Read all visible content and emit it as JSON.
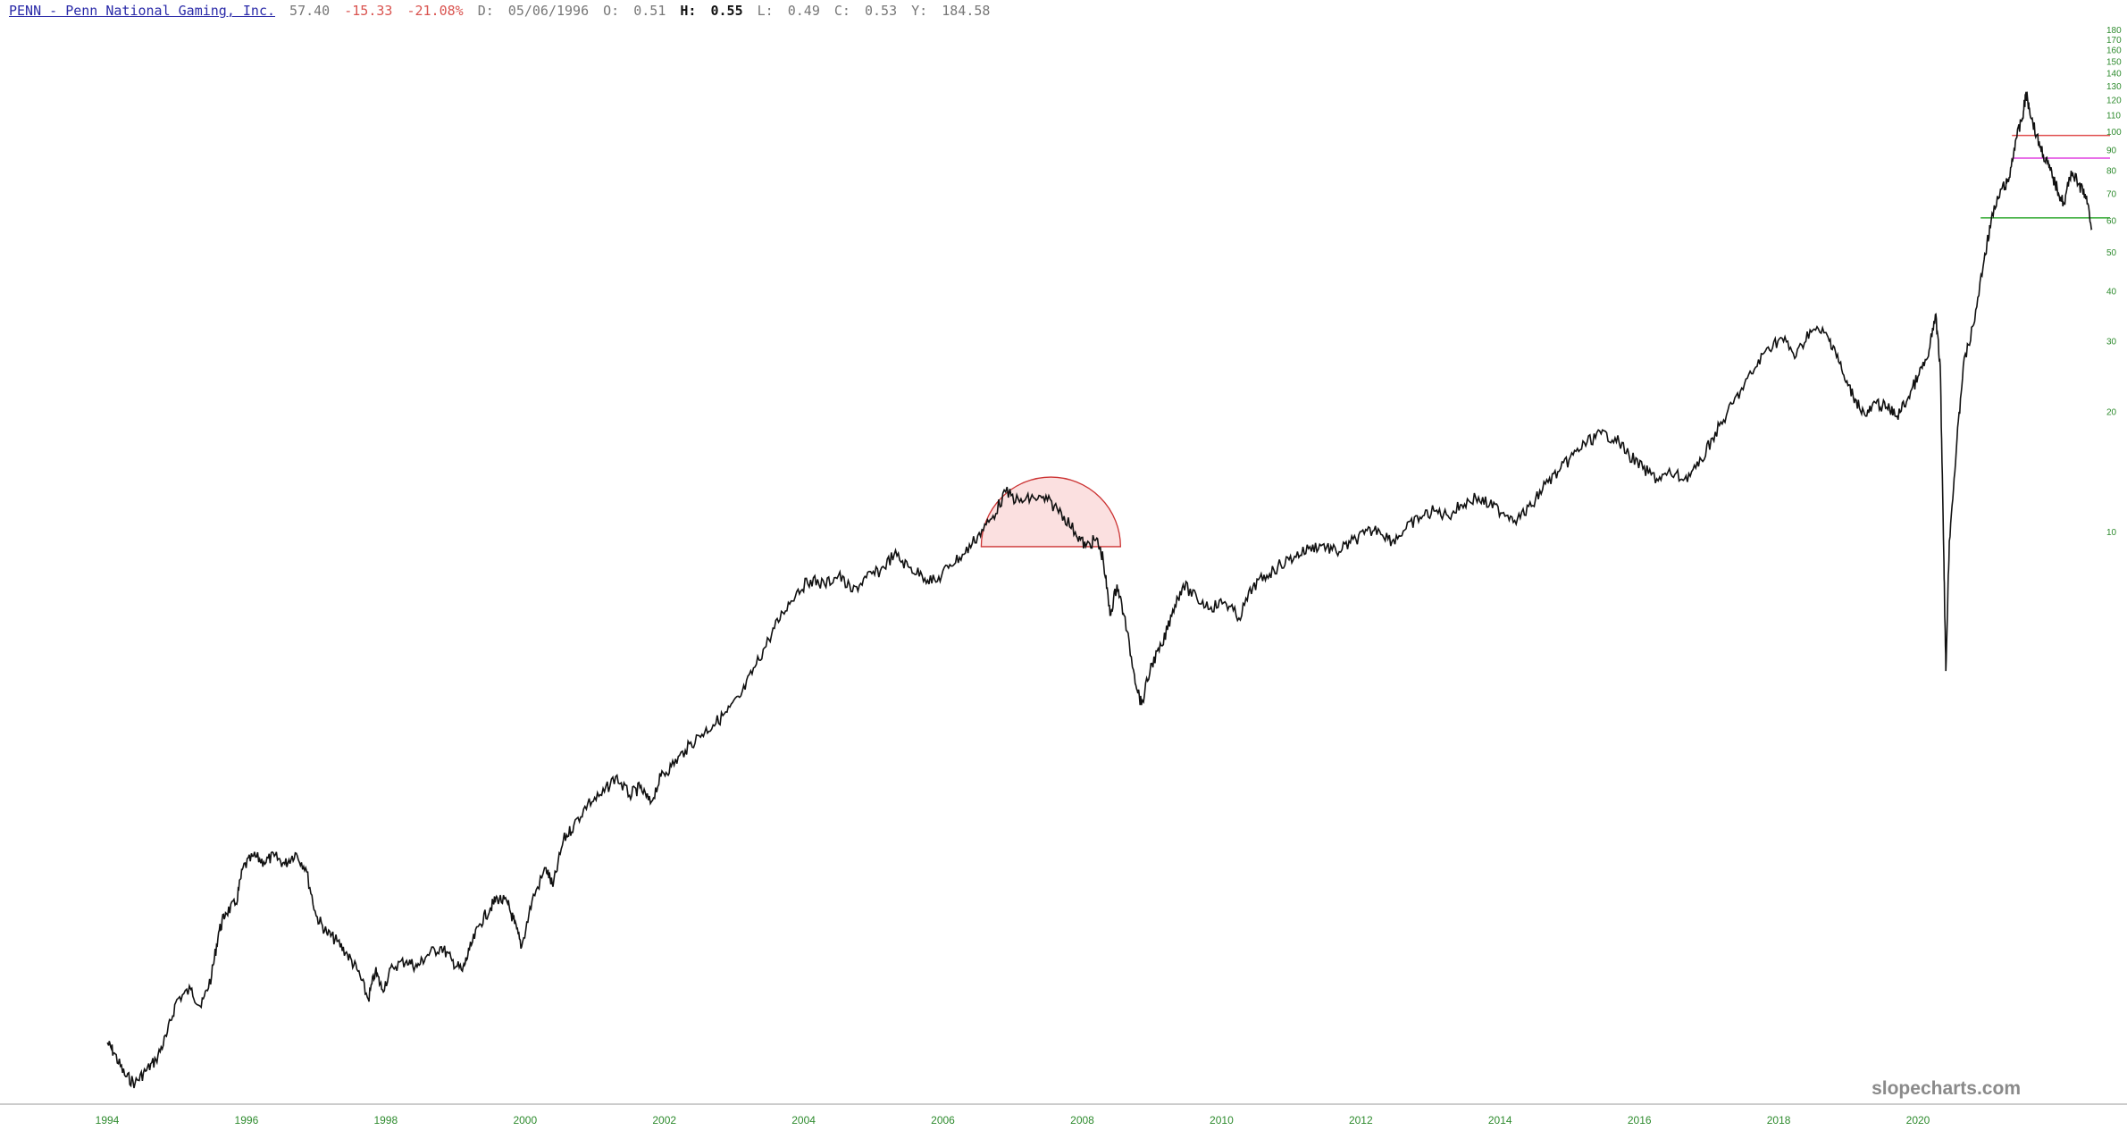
{
  "header": {
    "ticker_label": "PENN - Penn National Gaming, Inc.",
    "last": "57.40",
    "change": "-15.33",
    "change_pct": "-21.08%",
    "date_label": "D:",
    "date": "05/06/1996",
    "open_label": "O:",
    "open": "0.51",
    "high_label": "H:",
    "high": "0.55",
    "low_label": "L:",
    "low": "0.49",
    "close_label": "C:",
    "close": "0.53",
    "y_label": "Y:",
    "y": "184.58"
  },
  "watermark": "slopecharts.com",
  "colors": {
    "price_line": "#111111",
    "axis_text": "#2e8b2e",
    "semicircle_fill": "#f9d6d6",
    "semicircle_stroke": "#cc3333",
    "resistance_line": "#e05050",
    "magenta_line": "#e040e0",
    "support_line": "#33aa33"
  },
  "chart_data": {
    "type": "line",
    "title": "PENN - Penn National Gaming, Inc.",
    "y_scale": "log",
    "ylim": [
      0.4,
      185
    ],
    "xlim": [
      1994.0,
      2022.2
    ],
    "y_ticks": [
      {
        "value": 10,
        "label": "10"
      },
      {
        "value": 20,
        "label": "20"
      },
      {
        "value": 30,
        "label": "30"
      },
      {
        "value": 40,
        "label": "40"
      },
      {
        "value": 50,
        "label": "50"
      },
      {
        "value": 60,
        "label": "60"
      },
      {
        "value": 70,
        "label": "70"
      },
      {
        "value": 80,
        "label": "80"
      },
      {
        "value": 90,
        "label": "90"
      },
      {
        "value": 100,
        "label": "100"
      },
      {
        "value": 110,
        "label": "110"
      },
      {
        "value": 120,
        "label": "120"
      },
      {
        "value": 130,
        "label": "130"
      },
      {
        "value": 140,
        "label": "140"
      },
      {
        "value": 150,
        "label": "150"
      },
      {
        "value": 160,
        "label": "160"
      },
      {
        "value": 170,
        "label": "170"
      },
      {
        "value": 180,
        "label": "180"
      }
    ],
    "x_ticks": [
      {
        "value": 1994.5,
        "label": "1994"
      },
      {
        "value": 1996.5,
        "label": "1996"
      },
      {
        "value": 1998.5,
        "label": "1998"
      },
      {
        "value": 2000.5,
        "label": "2000"
      },
      {
        "value": 2002.5,
        "label": "2002"
      },
      {
        "value": 2004.5,
        "label": "2004"
      },
      {
        "value": 2006.5,
        "label": "2006"
      },
      {
        "value": 2008.5,
        "label": "2008"
      },
      {
        "value": 2010.5,
        "label": "2010"
      },
      {
        "value": 2012.5,
        "label": "2012"
      },
      {
        "value": 2014.5,
        "label": "2014"
      },
      {
        "value": 2016.5,
        "label": "2016"
      },
      {
        "value": 2018.5,
        "label": "2018"
      },
      {
        "value": 2020.5,
        "label": "2020"
      }
    ],
    "series": [
      {
        "values": [
          [
            1994.5,
            0.53
          ],
          [
            1994.6,
            0.5
          ],
          [
            1994.75,
            0.44
          ],
          [
            1994.9,
            0.42
          ],
          [
            1995.05,
            0.45
          ],
          [
            1995.2,
            0.48
          ],
          [
            1995.35,
            0.55
          ],
          [
            1995.5,
            0.68
          ],
          [
            1995.7,
            0.72
          ],
          [
            1995.85,
            0.65
          ],
          [
            1996.0,
            0.78
          ],
          [
            1996.1,
            1.0
          ],
          [
            1996.2,
            1.12
          ],
          [
            1996.35,
            1.18
          ],
          [
            1996.45,
            1.45
          ],
          [
            1996.6,
            1.55
          ],
          [
            1996.75,
            1.5
          ],
          [
            1996.9,
            1.55
          ],
          [
            1997.05,
            1.48
          ],
          [
            1997.2,
            1.58
          ],
          [
            1997.35,
            1.45
          ],
          [
            1997.5,
            1.1
          ],
          [
            1997.65,
            1.0
          ],
          [
            1997.8,
            0.95
          ],
          [
            1997.95,
            0.88
          ],
          [
            1998.1,
            0.8
          ],
          [
            1998.25,
            0.68
          ],
          [
            1998.35,
            0.8
          ],
          [
            1998.45,
            0.72
          ],
          [
            1998.6,
            0.82
          ],
          [
            1998.8,
            0.85
          ],
          [
            1998.95,
            0.82
          ],
          [
            1999.1,
            0.88
          ],
          [
            1999.3,
            0.92
          ],
          [
            1999.45,
            0.85
          ],
          [
            1999.6,
            0.8
          ],
          [
            1999.7,
            0.9
          ],
          [
            1999.85,
            1.05
          ],
          [
            2000.0,
            1.15
          ],
          [
            2000.1,
            1.22
          ],
          [
            2000.25,
            1.18
          ],
          [
            2000.35,
            1.05
          ],
          [
            2000.45,
            0.92
          ],
          [
            2000.6,
            1.2
          ],
          [
            2000.8,
            1.45
          ],
          [
            2000.9,
            1.3
          ],
          [
            2001.05,
            1.7
          ],
          [
            2001.2,
            1.85
          ],
          [
            2001.4,
            2.1
          ],
          [
            2001.6,
            2.2
          ],
          [
            2001.8,
            2.45
          ],
          [
            2002.0,
            2.2
          ],
          [
            2002.15,
            2.3
          ],
          [
            2002.3,
            2.1
          ],
          [
            2002.45,
            2.45
          ],
          [
            2002.6,
            2.6
          ],
          [
            2002.8,
            2.85
          ],
          [
            2003.0,
            3.1
          ],
          [
            2003.2,
            3.3
          ],
          [
            2003.4,
            3.55
          ],
          [
            2003.6,
            3.9
          ],
          [
            2003.8,
            4.6
          ],
          [
            2004.0,
            5.4
          ],
          [
            2004.2,
            6.3
          ],
          [
            2004.4,
            7.1
          ],
          [
            2004.6,
            7.6
          ],
          [
            2004.8,
            7.4
          ],
          [
            2005.0,
            7.8
          ],
          [
            2005.2,
            7.1
          ],
          [
            2005.4,
            7.7
          ],
          [
            2005.6,
            8.0
          ],
          [
            2005.8,
            8.8
          ],
          [
            2006.0,
            8.2
          ],
          [
            2006.2,
            7.8
          ],
          [
            2006.4,
            7.5
          ],
          [
            2006.6,
            8.3
          ],
          [
            2006.8,
            8.8
          ],
          [
            2007.0,
            9.8
          ],
          [
            2007.2,
            10.8
          ],
          [
            2007.4,
            12.6
          ],
          [
            2007.6,
            11.9
          ],
          [
            2007.8,
            12.2
          ],
          [
            2008.0,
            12.0
          ],
          [
            2008.2,
            11.2
          ],
          [
            2008.4,
            10.0
          ],
          [
            2008.55,
            9.2
          ],
          [
            2008.7,
            9.6
          ],
          [
            2008.8,
            8.6
          ],
          [
            2008.9,
            6.2
          ],
          [
            2009.0,
            7.4
          ],
          [
            2009.1,
            6.2
          ],
          [
            2009.25,
            4.4
          ],
          [
            2009.35,
            3.7
          ],
          [
            2009.5,
            4.7
          ],
          [
            2009.65,
            5.2
          ],
          [
            2009.8,
            6.4
          ],
          [
            2009.95,
            7.4
          ],
          [
            2010.15,
            6.8
          ],
          [
            2010.35,
            6.5
          ],
          [
            2010.55,
            6.7
          ],
          [
            2010.75,
            6.1
          ],
          [
            2010.95,
            7.3
          ],
          [
            2011.15,
            7.8
          ],
          [
            2011.35,
            8.3
          ],
          [
            2011.55,
            8.7
          ],
          [
            2011.75,
            9.1
          ],
          [
            2011.95,
            9.3
          ],
          [
            2012.15,
            8.9
          ],
          [
            2012.35,
            9.4
          ],
          [
            2012.55,
            9.9
          ],
          [
            2012.75,
            10.2
          ],
          [
            2012.95,
            9.5
          ],
          [
            2013.15,
            10.2
          ],
          [
            2013.35,
            10.9
          ],
          [
            2013.55,
            11.3
          ],
          [
            2013.75,
            11.0
          ],
          [
            2013.95,
            11.7
          ],
          [
            2014.15,
            12.2
          ],
          [
            2014.35,
            11.7
          ],
          [
            2014.55,
            11.2
          ],
          [
            2014.75,
            10.8
          ],
          [
            2014.95,
            11.6
          ],
          [
            2015.15,
            13.2
          ],
          [
            2015.35,
            14.2
          ],
          [
            2015.55,
            15.6
          ],
          [
            2015.75,
            16.8
          ],
          [
            2015.95,
            17.6
          ],
          [
            2016.15,
            17.2
          ],
          [
            2016.35,
            15.6
          ],
          [
            2016.55,
            14.4
          ],
          [
            2016.75,
            13.6
          ],
          [
            2016.95,
            14.0
          ],
          [
            2017.15,
            13.6
          ],
          [
            2017.35,
            14.6
          ],
          [
            2017.55,
            17.2
          ],
          [
            2017.75,
            19.6
          ],
          [
            2017.95,
            22.5
          ],
          [
            2018.15,
            25.5
          ],
          [
            2018.35,
            29.0
          ],
          [
            2018.55,
            30.5
          ],
          [
            2018.75,
            27.5
          ],
          [
            2018.95,
            32.0
          ],
          [
            2019.15,
            31.5
          ],
          [
            2019.3,
            29.0
          ],
          [
            2019.45,
            24.0
          ],
          [
            2019.6,
            21.5
          ],
          [
            2019.75,
            19.5
          ],
          [
            2019.9,
            21.0
          ],
          [
            2020.05,
            20.5
          ],
          [
            2020.2,
            19.5
          ],
          [
            2020.35,
            21.5
          ],
          [
            2020.5,
            24.5
          ],
          [
            2020.65,
            27.5
          ],
          [
            2020.75,
            35.0
          ],
          [
            2020.82,
            26.0
          ],
          [
            2020.87,
            9.0
          ],
          [
            2020.9,
            4.5
          ],
          [
            2020.95,
            9.5
          ],
          [
            2021.05,
            16.0
          ],
          [
            2021.15,
            26.0
          ],
          [
            2021.3,
            33.0
          ],
          [
            2021.45,
            48.0
          ],
          [
            2021.55,
            60.0
          ],
          [
            2021.7,
            72.0
          ],
          [
            2021.8,
            75.0
          ],
          [
            2021.9,
            95.0
          ],
          [
            2022.0,
            108.0
          ],
          [
            2022.05,
            125.0
          ],
          [
            2022.1,
            115.0
          ],
          [
            2022.2,
            98.0
          ],
          [
            2022.3,
            88.0
          ],
          [
            2022.4,
            80.0
          ],
          [
            2022.5,
            72.0
          ],
          [
            2022.6,
            66.0
          ],
          [
            2022.7,
            80.0
          ],
          [
            2022.8,
            74.0
          ],
          [
            2022.9,
            70.0
          ],
          [
            2023.0,
            57.4
          ]
        ]
      }
    ],
    "annotations": [
      {
        "type": "semicircle",
        "x_from": 2007.05,
        "x_to": 2009.05,
        "base_y": 9.2
      },
      {
        "type": "hline",
        "y": 98,
        "x_from": 2021.85,
        "x_to": 2023.6,
        "color_key": "resistance_line"
      },
      {
        "type": "hline",
        "y": 86,
        "x_from": 2021.85,
        "x_to": 2023.6,
        "color_key": "magenta_line"
      },
      {
        "type": "hline",
        "y": 61,
        "x_from": 2021.4,
        "x_to": 2023.6,
        "color_key": "support_line"
      }
    ]
  }
}
